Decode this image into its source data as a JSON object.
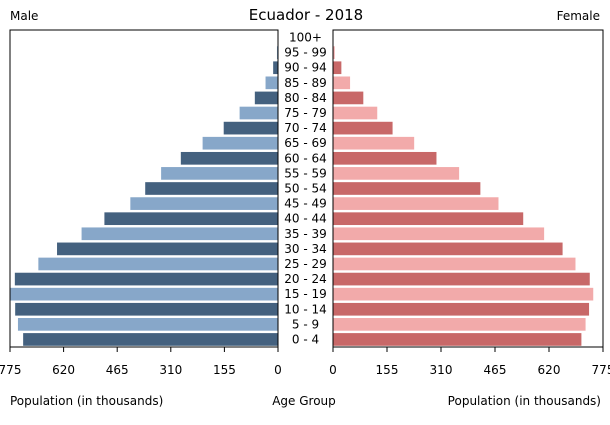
{
  "chart_data": {
    "type": "bar",
    "title": "Ecuador - 2018",
    "left_label": "Male",
    "right_label": "Female",
    "xlabel_left": "Population (in thousands)",
    "xlabel_center": "Age Group",
    "xlabel_right": "Population (in thousands)",
    "xlim": [
      0,
      775
    ],
    "ticks": [
      0,
      155,
      310,
      465,
      620,
      775
    ],
    "categories": [
      "100+",
      "95 - 99",
      "90 - 94",
      "85 - 89",
      "80 - 84",
      "75 - 79",
      "70 - 74",
      "65 - 69",
      "60 - 64",
      "55 - 59",
      "50 - 54",
      "45 - 49",
      "40 - 44",
      "35 - 39",
      "30 - 34",
      "25 - 29",
      "20 - 24",
      "15 - 19",
      "10 - 14",
      "5 - 9",
      "0 - 4"
    ],
    "series": [
      {
        "name": "Male",
        "values": [
          1,
          3,
          14,
          36,
          67,
          111,
          157,
          218,
          281,
          338,
          384,
          427,
          502,
          568,
          639,
          693,
          761,
          776,
          760,
          752,
          737
        ]
      },
      {
        "name": "Female",
        "values": [
          1,
          5,
          24,
          49,
          87,
          127,
          171,
          233,
          297,
          362,
          423,
          475,
          546,
          606,
          659,
          696,
          737,
          747,
          735,
          725,
          713
        ]
      }
    ],
    "colors": {
      "male_dark": "#44617f",
      "male_light": "#87a7c9",
      "female_dark": "#c86868",
      "female_light": "#f2aaaa"
    },
    "grid": false
  }
}
